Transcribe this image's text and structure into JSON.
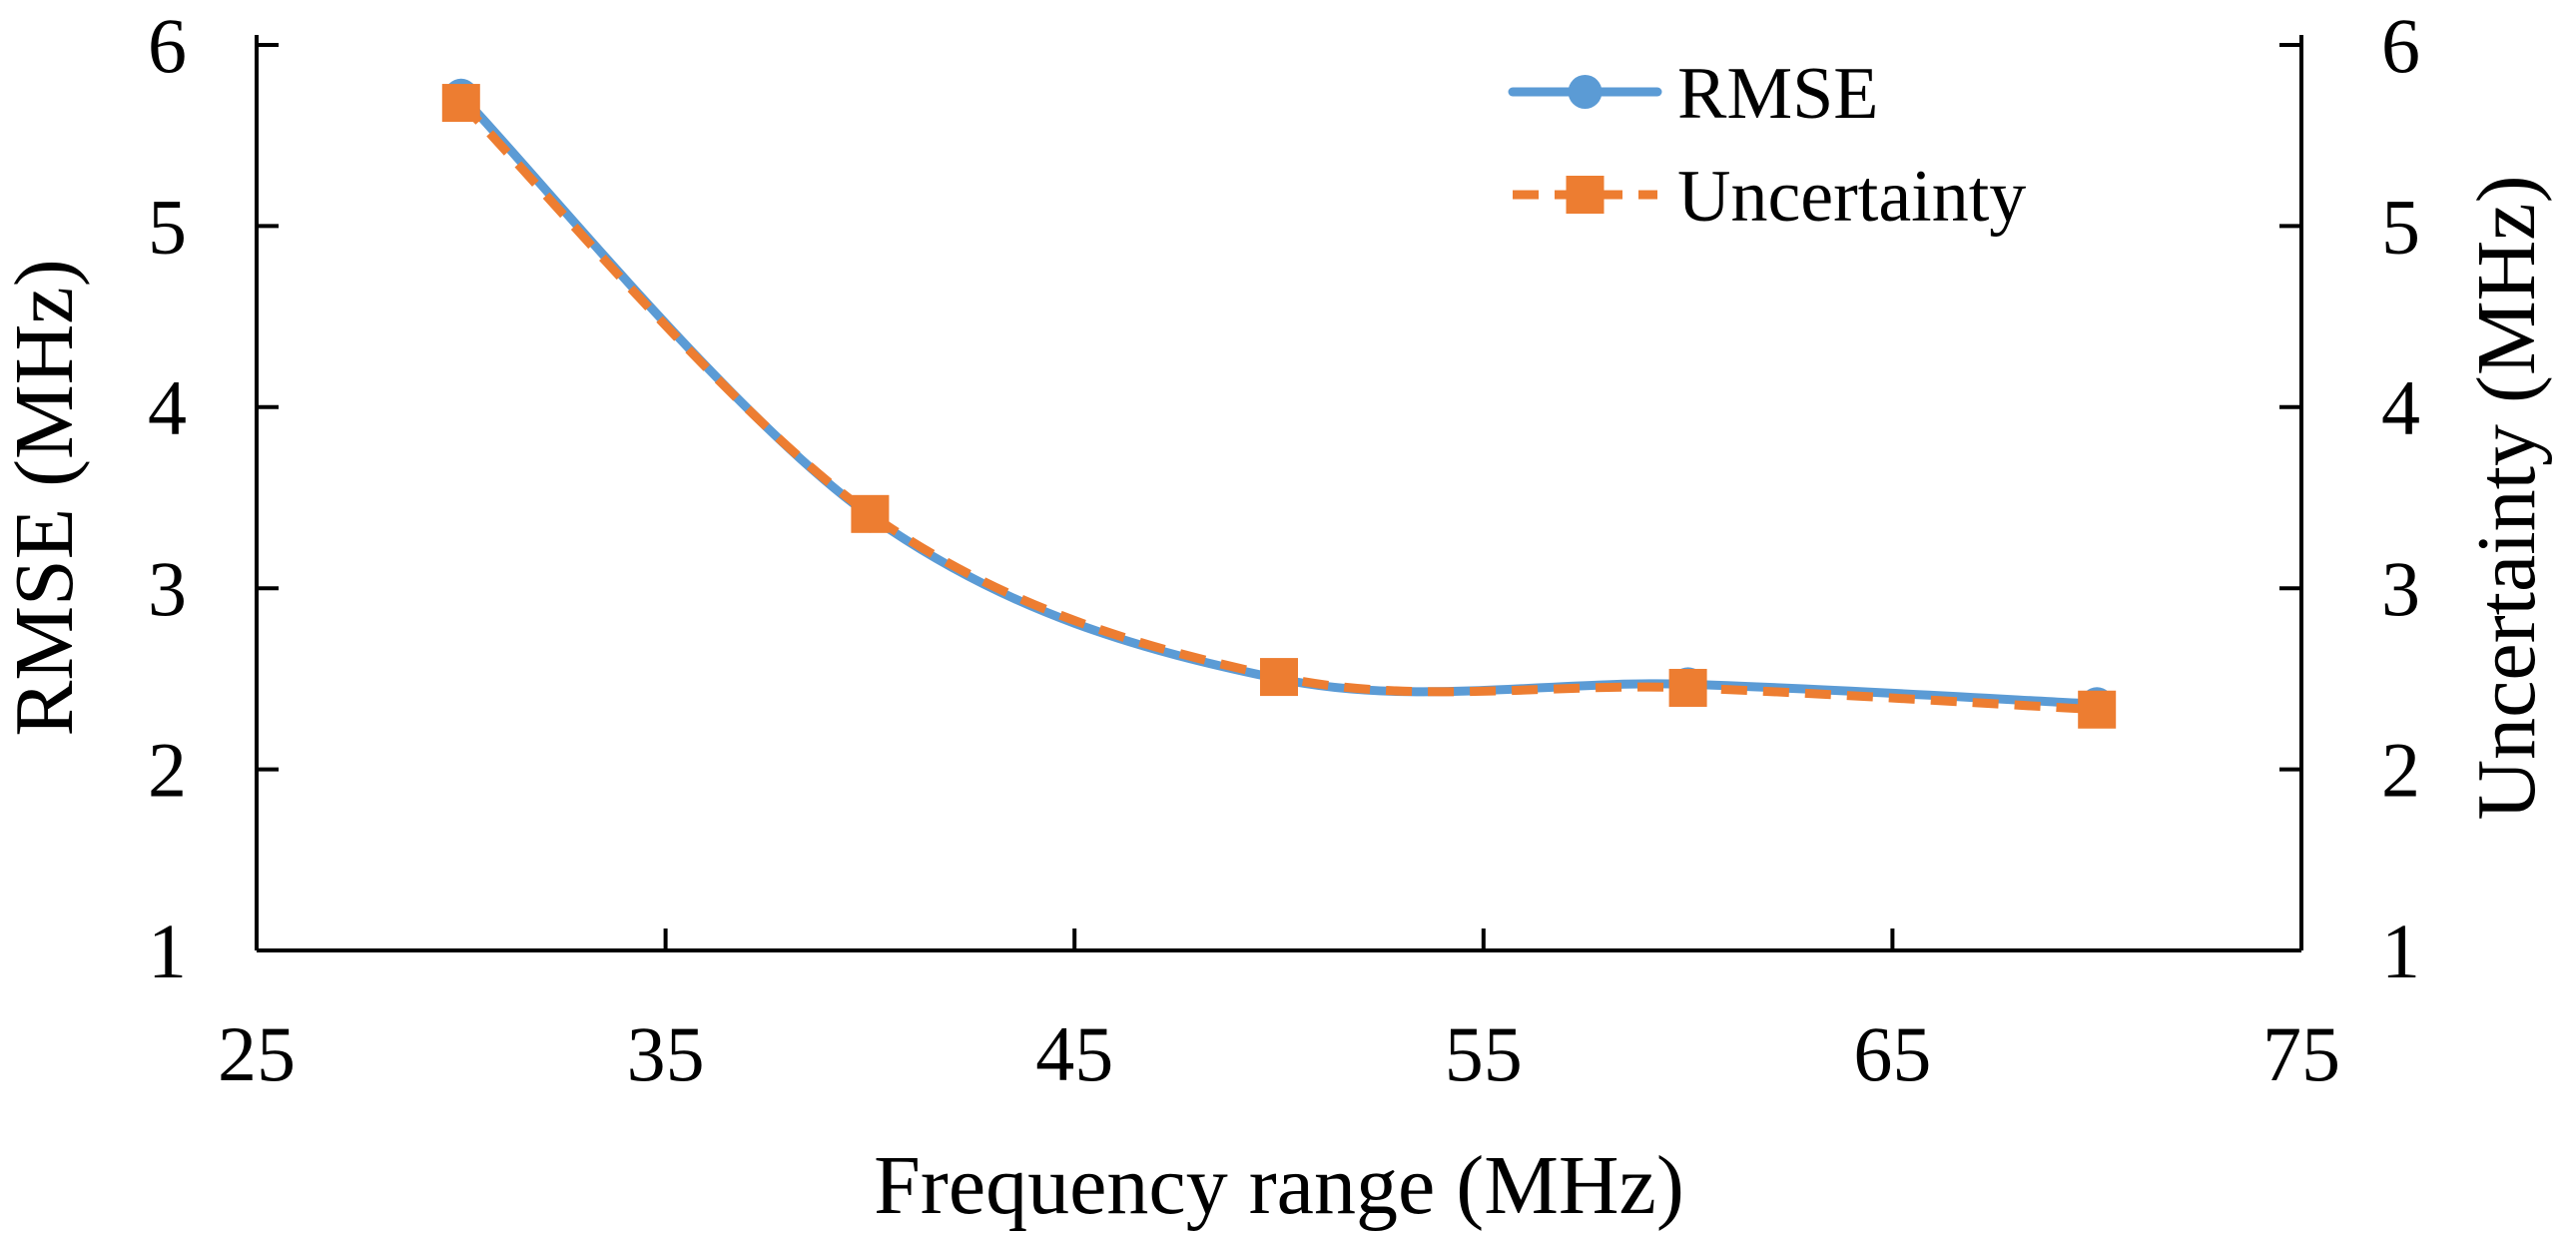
{
  "chart_data": {
    "type": "line",
    "title": "",
    "xlabel": "Frequency range (MHz)",
    "ylabel": "RMSE (MHz)",
    "y2label": "Uncertainty (MHz)",
    "xlim": [
      25,
      75
    ],
    "ylim": [
      1,
      6
    ],
    "y2lim": [
      1,
      6
    ],
    "xticks": [
      25,
      35,
      45,
      55,
      65,
      75
    ],
    "yticks": [
      1,
      2,
      3,
      4,
      5,
      6
    ],
    "y2ticks": [
      1,
      2,
      3,
      4,
      5,
      6
    ],
    "xtick_labels": [
      "25",
      "35",
      "45",
      "55",
      "65",
      "75"
    ],
    "ytick_labels": [
      "1",
      "2",
      "3",
      "4",
      "5",
      "6"
    ],
    "y2tick_labels": [
      "1",
      "2",
      "3",
      "4",
      "5",
      "6"
    ],
    "x": [
      30,
      40,
      50,
      60,
      70
    ],
    "series": [
      {
        "name": "RMSE",
        "axis": "left",
        "values": [
          5.72,
          3.4,
          2.5,
          2.47,
          2.36
        ],
        "color": "#5b9bd5",
        "marker": "circle",
        "dash": "solid"
      },
      {
        "name": "Uncertainty",
        "axis": "right",
        "values": [
          5.68,
          3.41,
          2.51,
          2.45,
          2.33
        ],
        "color": "#ed7d31",
        "marker": "square",
        "dash": "dashed"
      }
    ],
    "legend_position": "top-right",
    "grid": false
  }
}
